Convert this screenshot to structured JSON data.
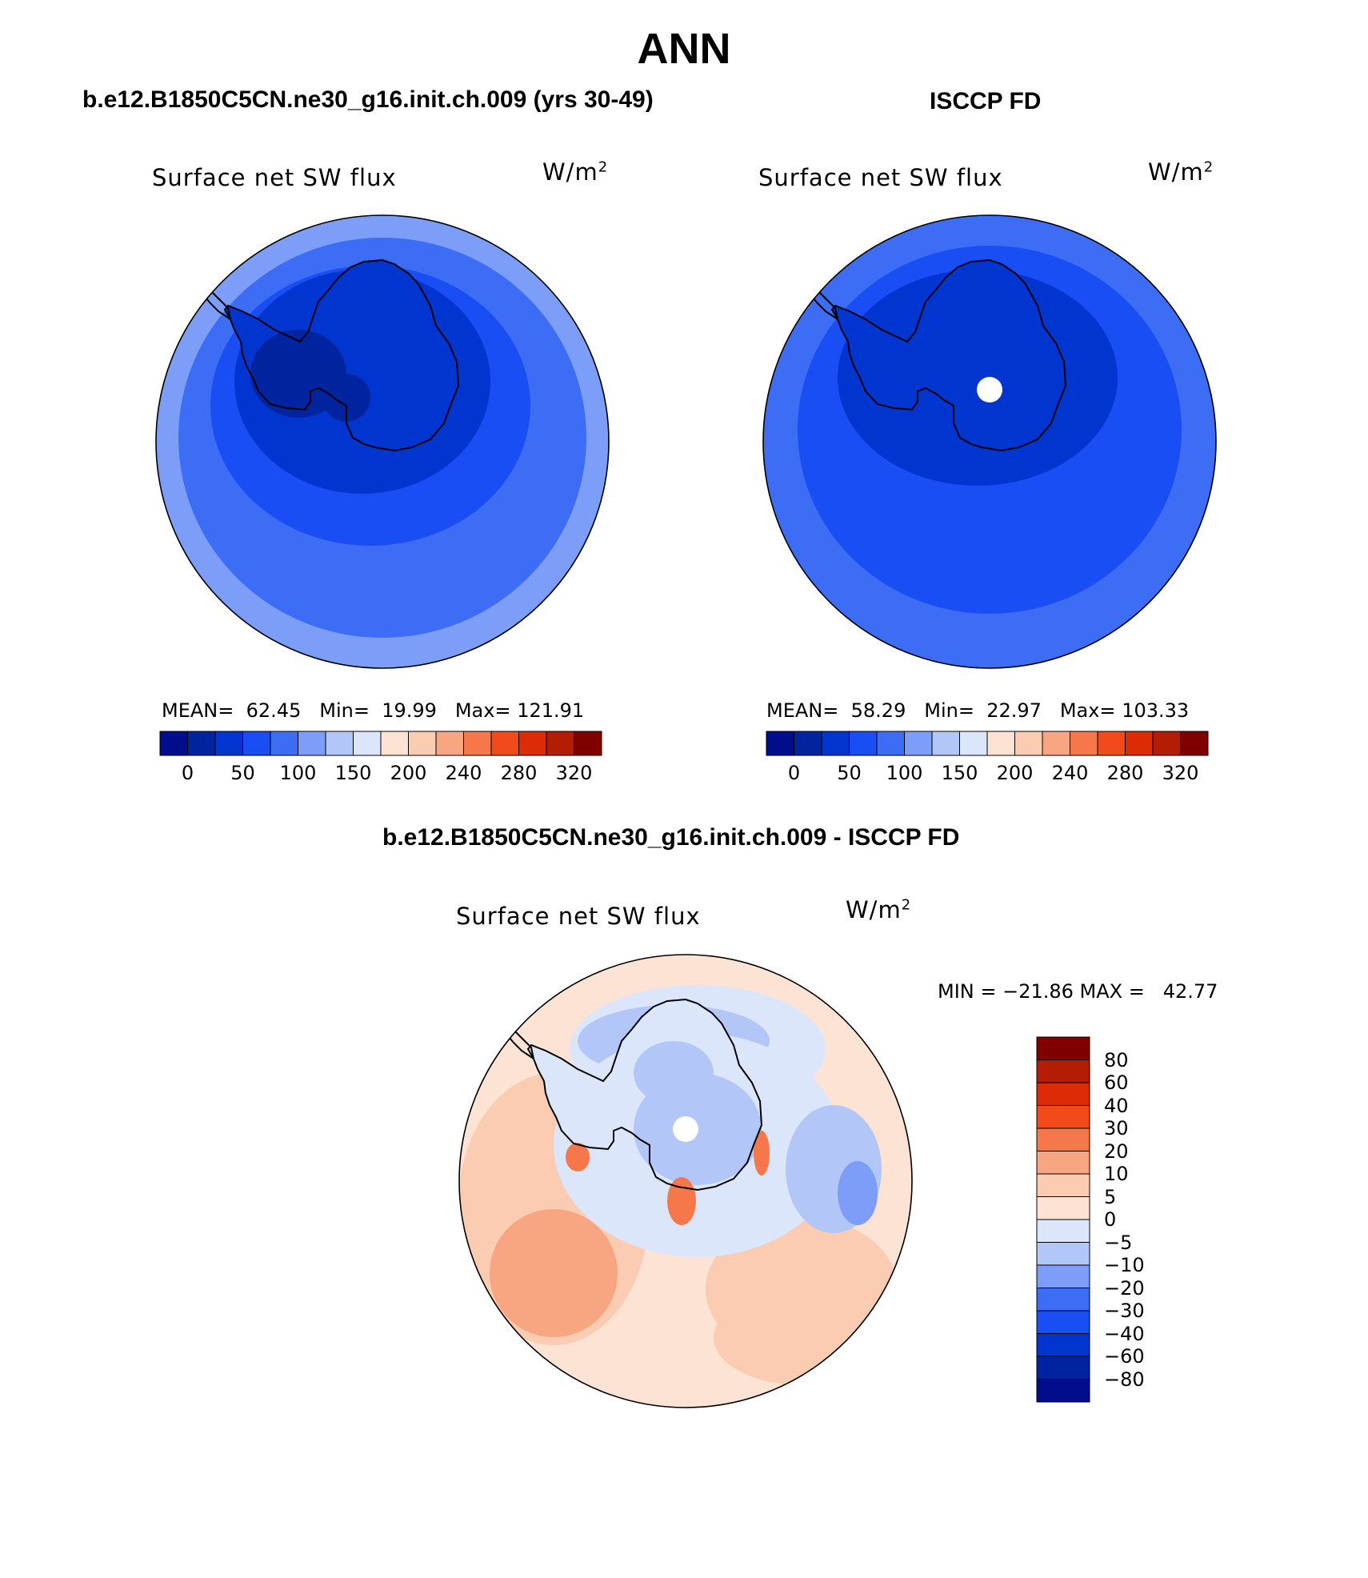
{
  "title": "ANN",
  "colors": {
    "abs_scale": [
      "#000e8c",
      "#00249f",
      "#0035d0",
      "#1a4ef5",
      "#3d6cf5",
      "#7c9ef8",
      "#b3c6f8",
      "#dbe6fa",
      "#fde3d3",
      "#fbcbb2",
      "#f8a582",
      "#f6774a",
      "#f24a1b",
      "#dd2b06",
      "#b31d04",
      "#800000"
    ],
    "diff_scale": [
      "#000e8c",
      "#00249f",
      "#0035d0",
      "#1a4ef5",
      "#3d6cf5",
      "#7c9ef8",
      "#b3c6f8",
      "#dbe6fa",
      "#fde3d3",
      "#fbcbb2",
      "#f8a582",
      "#f6774a",
      "#f24a1b",
      "#dd2b06",
      "#b31d04",
      "#800000"
    ],
    "coastline": "#000000"
  },
  "panels": [
    {
      "title": "b.e12.B1850C5CN.ne30_g16.init.ch.009 (yrs 30-49)",
      "variable": "Surface net SW flux",
      "units_base": "W/m",
      "units_exp": "2",
      "mean_label": "MEAN=",
      "mean": "62.45",
      "min_label": "Min=",
      "min": "19.99",
      "max_label": "Max=",
      "max": "121.91",
      "colorbar_ticks": [
        "0",
        "50",
        "100",
        "150",
        "200",
        "240",
        "280",
        "320"
      ],
      "field": {
        "rings": [
          "#7c9ef8",
          "#3d6cf5",
          "#1a4ef5",
          "#0035d0",
          "#00249f"
        ]
      }
    },
    {
      "title": "ISCCP FD",
      "variable": "Surface net SW flux",
      "units_base": "W/m",
      "units_exp": "2",
      "mean_label": "MEAN=",
      "mean": "58.29",
      "min_label": "Min=",
      "min": "22.97",
      "max_label": "Max=",
      "max": "103.33",
      "colorbar_ticks": [
        "0",
        "50",
        "100",
        "150",
        "200",
        "240",
        "280",
        "320"
      ],
      "field": {
        "rings": [
          "#3d6cf5",
          "#1a4ef5",
          "#0035d0"
        ]
      }
    }
  ],
  "difference": {
    "title": "b.e12.B1850C5CN.ne30_g16.init.ch.009 - ISCCP FD",
    "variable": "Surface net SW flux",
    "units_base": "W/m",
    "units_exp": "2",
    "minmax_text": "MIN = −21.86 MAX =   42.77",
    "colorbar_ticks": [
      "80",
      "60",
      "40",
      "30",
      "20",
      "10",
      "5",
      "0",
      "−5",
      "−10",
      "−20",
      "−30",
      "−40",
      "−60",
      "−80"
    ]
  }
}
